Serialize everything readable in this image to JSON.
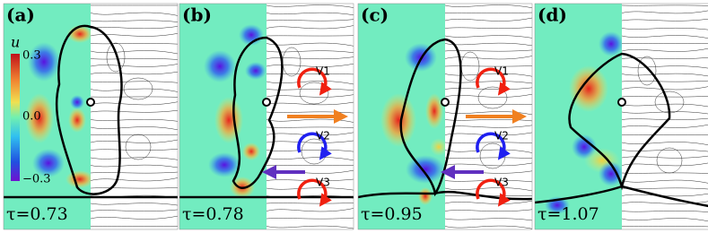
{
  "panels": [
    {
      "label": "(a)",
      "tau": "τ=0.73",
      "vortices": []
    },
    {
      "label": "(b)",
      "tau": "τ=0.78",
      "vortices": [
        "V1",
        "V2",
        "V3"
      ]
    },
    {
      "label": "(c)",
      "tau": "τ=0.95",
      "vortices": [
        "V1",
        "V2",
        "V3"
      ]
    },
    {
      "label": "(d)",
      "tau": "τ=1.07",
      "vortices": []
    }
  ],
  "colorbar": {
    "symbol": "u",
    "ticks": [
      "0.3",
      "0.0",
      "−0.3"
    ]
  }
}
